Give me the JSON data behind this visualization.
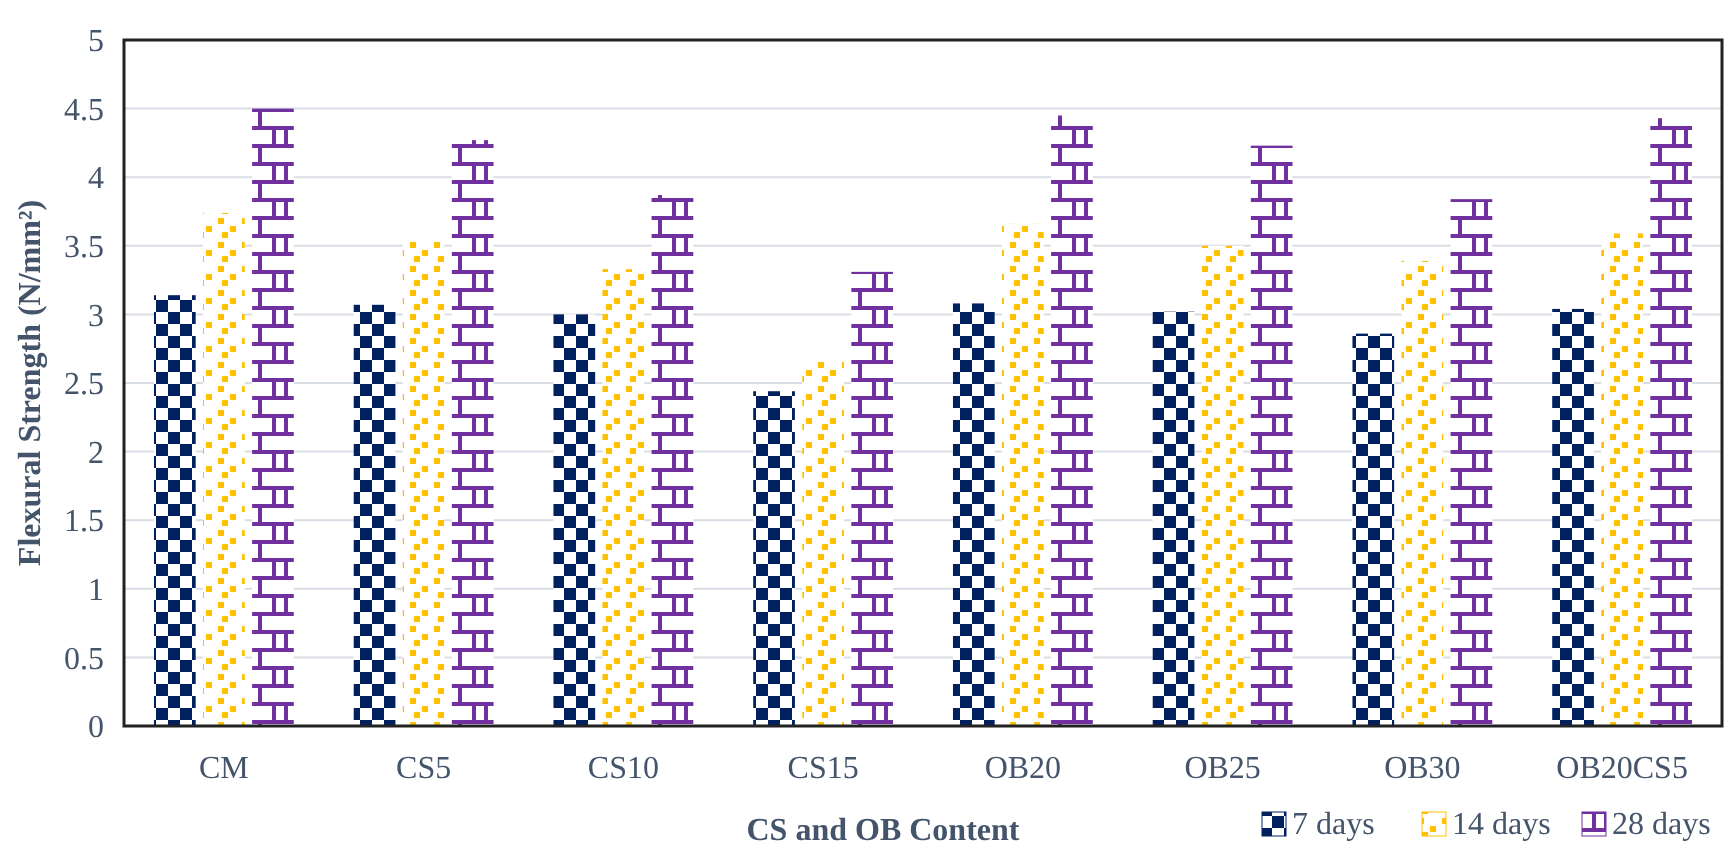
{
  "chart_data": {
    "type": "bar",
    "xlabel": "CS and OB Content",
    "ylabel": "Flexural Strength (N/mm²)",
    "categories": [
      "CM",
      "CS5",
      "CS10",
      "CS15",
      "OB20",
      "OB25",
      "OB30",
      "OB20CS5"
    ],
    "series": [
      {
        "name": "7 days",
        "color": "#002060",
        "values": [
          3.14,
          3.07,
          3.0,
          2.44,
          3.08,
          3.02,
          2.86,
          3.04
        ]
      },
      {
        "name": "14 days",
        "color": "#ffc000",
        "values": [
          3.74,
          3.55,
          3.33,
          2.67,
          3.66,
          3.5,
          3.39,
          3.59
        ]
      },
      {
        "name": "28 days",
        "color": "#7030a0",
        "values": [
          4.5,
          4.27,
          3.87,
          3.31,
          4.45,
          4.23,
          3.84,
          4.43
        ]
      }
    ],
    "ylim": [
      0,
      5
    ],
    "yticks": [
      0,
      0.5,
      1,
      1.5,
      2,
      2.5,
      3,
      3.5,
      4,
      4.5,
      5
    ],
    "grid": "y",
    "legend": "bottom right"
  }
}
